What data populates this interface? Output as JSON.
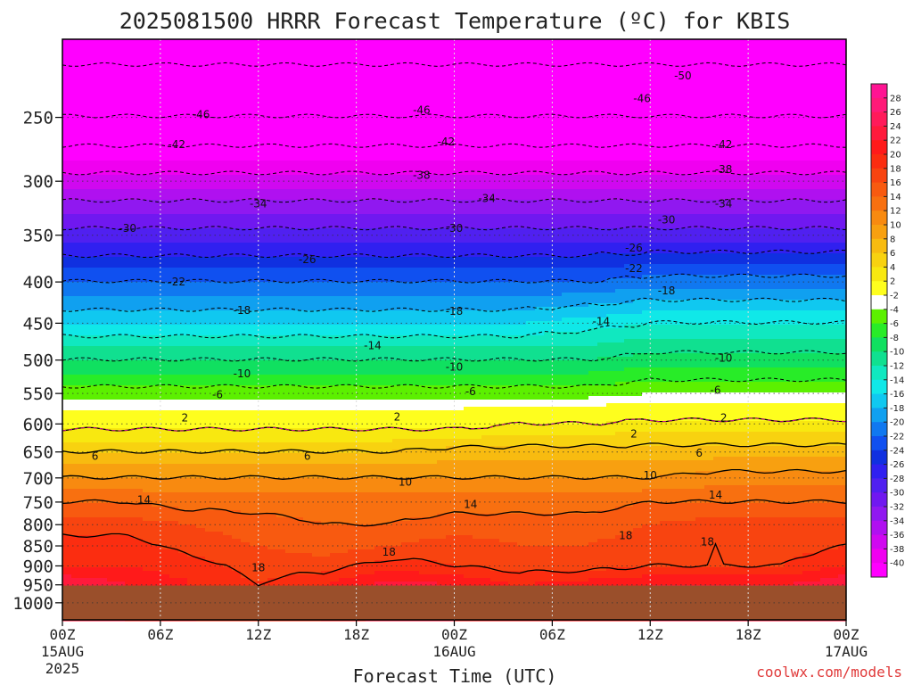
{
  "title": "2025081500 HRRR Forecast Temperature (ºC) for KBIS",
  "credit": "coolwx.com/models",
  "colors": {
    "ground": "#9a4f2b",
    "frame": "#000000",
    "grid": "#bdbdbd",
    "freezing_line": "#d0108a"
  },
  "chart_data": {
    "type": "heatmap",
    "title": "2025081500 HRRR Forecast Temperature (ºC) for KBIS",
    "xlabel": "Forecast Time (UTC)",
    "ylabel": "",
    "x_ticks": [
      {
        "h": 0,
        "l1": "00Z",
        "l2": "15AUG",
        "l3": "2025"
      },
      {
        "h": 6,
        "l1": "06Z"
      },
      {
        "h": 12,
        "l1": "12Z"
      },
      {
        "h": 18,
        "l1": "18Z"
      },
      {
        "h": 24,
        "l1": "00Z",
        "l2": "16AUG"
      },
      {
        "h": 30,
        "l1": "06Z"
      },
      {
        "h": 36,
        "l1": "12Z"
      },
      {
        "h": 42,
        "l1": "18Z"
      },
      {
        "h": 48,
        "l1": "00Z",
        "l2": "17AUG"
      }
    ],
    "xlim": [
      0,
      48
    ],
    "y_ticks": [
      250,
      300,
      350,
      400,
      450,
      500,
      550,
      600,
      650,
      700,
      750,
      800,
      850,
      900,
      950,
      1000
    ],
    "ylim_hpa": [
      1050,
      200
    ],
    "y_scale": "log",
    "surface_hpa": 952,
    "colorbar": {
      "ticks": [
        28,
        26,
        24,
        22,
        20,
        18,
        16,
        14,
        12,
        10,
        8,
        6,
        4,
        2,
        -2,
        -4,
        -6,
        -8,
        -10,
        -12,
        -14,
        -16,
        -18,
        -20,
        -22,
        -24,
        -26,
        -28,
        -30,
        -32,
        -34,
        -36,
        -38,
        -40
      ],
      "colors": [
        "#ff1493",
        "#ff1a78",
        "#ff1a5a",
        "#ff1a3c",
        "#ff1a1a",
        "#fb2d10",
        "#f84410",
        "#f85a10",
        "#f87010",
        "#f88a10",
        "#f8a010",
        "#f8bb10",
        "#f8d210",
        "#f8e810",
        "#fefe1e",
        "#ffffff",
        "#5cf000",
        "#28ec28",
        "#10e060",
        "#10e090",
        "#10e8c0",
        "#10e8e8",
        "#10c8f0",
        "#10a0f0",
        "#1078f0",
        "#1050f0",
        "#1030e0",
        "#3020f0",
        "#5020f0",
        "#7018f0",
        "#9018f0",
        "#b010f0",
        "#d008f0",
        "#f000f0",
        "#ff00ff"
      ]
    },
    "series": [
      {
        "pressure_hpa": 950,
        "temps": [
          24,
          22,
          20,
          18,
          20,
          23,
          22,
          20,
          21,
          22,
          22,
          22,
          24
        ]
      },
      {
        "pressure_hpa": 900,
        "temps": [
          20,
          20,
          19,
          17,
          17,
          19,
          18,
          17,
          17,
          18,
          18,
          18,
          20
        ]
      },
      {
        "pressure_hpa": 850,
        "temps": [
          19,
          19,
          17,
          16,
          15,
          16,
          17,
          16,
          16,
          17,
          18,
          17,
          18
        ]
      },
      {
        "pressure_hpa": 800,
        "temps": [
          17,
          17,
          16,
          15,
          14,
          14,
          15,
          15,
          15,
          16,
          17,
          17,
          17
        ]
      },
      {
        "pressure_hpa": 750,
        "temps": [
          14,
          14,
          13,
          13,
          13,
          13,
          13,
          13,
          13,
          14,
          14,
          14,
          14
        ]
      },
      {
        "pressure_hpa": 700,
        "temps": [
          10,
          10,
          10,
          10,
          10,
          10,
          10,
          10,
          10,
          10,
          11,
          11,
          11
        ]
      },
      {
        "pressure_hpa": 650,
        "temps": [
          6,
          6,
          6,
          6,
          6,
          6,
          7,
          7,
          7,
          7,
          7,
          7,
          7
        ]
      },
      {
        "pressure_hpa": 600,
        "temps": [
          1,
          1,
          1,
          1,
          1,
          1,
          1,
          2,
          2,
          3,
          3,
          3,
          3
        ]
      },
      {
        "pressure_hpa": 550,
        "temps": [
          -5,
          -5,
          -5,
          -5,
          -5,
          -5,
          -5,
          -5,
          -5,
          -4,
          -4,
          -4,
          -4
        ]
      },
      {
        "pressure_hpa": 500,
        "temps": [
          -10,
          -10,
          -10,
          -10,
          -10,
          -10,
          -10,
          -10,
          -10,
          -9,
          -9,
          -9,
          -9
        ]
      },
      {
        "pressure_hpa": 450,
        "temps": [
          -16,
          -16,
          -16,
          -16,
          -16,
          -16,
          -16,
          -16,
          -15,
          -14,
          -14,
          -14,
          -14
        ]
      },
      {
        "pressure_hpa": 400,
        "temps": [
          -22,
          -22,
          -22,
          -22,
          -22,
          -22,
          -22,
          -22,
          -22,
          -21,
          -21,
          -21,
          -21
        ]
      },
      {
        "pressure_hpa": 350,
        "temps": [
          -29,
          -29,
          -29,
          -29,
          -29,
          -29,
          -29,
          -29,
          -29,
          -29,
          -29,
          -29,
          -29
        ]
      },
      {
        "pressure_hpa": 300,
        "temps": [
          -37,
          -37,
          -37,
          -37,
          -37,
          -37,
          -37,
          -37,
          -37,
          -37,
          -37,
          -37,
          -37
        ]
      },
      {
        "pressure_hpa": 250,
        "temps": [
          -46,
          -46,
          -46,
          -46,
          -46,
          -46,
          -46,
          -46,
          -46,
          -46,
          -46,
          -46,
          -46
        ]
      },
      {
        "pressure_hpa": 200,
        "temps": [
          -52,
          -52,
          -52,
          -52,
          -52,
          -52,
          -52,
          -52,
          -52,
          -52,
          -52,
          -52,
          -52
        ]
      }
    ],
    "series_hours": [
      0,
      4,
      8,
      12,
      16,
      20,
      24,
      28,
      32,
      36,
      40,
      44,
      48
    ],
    "contours": [
      {
        "value": 18,
        "style": "solid",
        "labels": [
          [
            12,
            905
          ],
          [
            20,
            865
          ],
          [
            34.5,
            825
          ],
          [
            39.5,
            840
          ]
        ]
      },
      {
        "value": 14,
        "style": "solid",
        "labels": [
          [
            5,
            745
          ],
          [
            25,
            755
          ],
          [
            40,
            735
          ]
        ]
      },
      {
        "value": 10,
        "style": "solid",
        "labels": [
          [
            21,
            708
          ],
          [
            36,
            695
          ]
        ]
      },
      {
        "value": 6,
        "style": "solid",
        "labels": [
          [
            2,
            658
          ],
          [
            15,
            658
          ],
          [
            39,
            652
          ]
        ]
      },
      {
        "value": 2,
        "style": "solid",
        "labels": [
          [
            35,
            617
          ]
        ]
      },
      {
        "value": 2,
        "style": "dashed",
        "labels": [
          [
            7.5,
            590
          ],
          [
            20.5,
            588
          ],
          [
            40.5,
            590
          ]
        ]
      },
      {
        "value": -6,
        "style": "dashed",
        "labels": [
          [
            9.5,
            552
          ],
          [
            25,
            547
          ],
          [
            40,
            545
          ]
        ]
      },
      {
        "value": -10,
        "style": "dashed",
        "labels": [
          [
            11,
            520
          ],
          [
            24,
            510
          ],
          [
            40.5,
            497
          ]
        ]
      },
      {
        "value": -14,
        "style": "dashed",
        "labels": [
          [
            19,
            480
          ],
          [
            33,
            448
          ]
        ]
      },
      {
        "value": -18,
        "style": "dashed",
        "labels": [
          [
            11,
            434
          ],
          [
            24,
            435
          ],
          [
            37,
            410
          ]
        ]
      },
      {
        "value": -22,
        "style": "dashed",
        "labels": [
          [
            7,
            400
          ],
          [
            35,
            385
          ]
        ]
      },
      {
        "value": -26,
        "style": "dashed",
        "labels": [
          [
            15,
            375
          ],
          [
            35,
            363
          ]
        ]
      },
      {
        "value": -30,
        "style": "dashed",
        "labels": [
          [
            4,
            343
          ],
          [
            24,
            343
          ],
          [
            37,
            335
          ]
        ]
      },
      {
        "value": -34,
        "style": "dashed",
        "labels": [
          [
            12,
            320
          ],
          [
            26,
            315
          ],
          [
            40.5,
            320
          ]
        ]
      },
      {
        "value": -38,
        "style": "dashed",
        "labels": [
          [
            22,
            295
          ],
          [
            40.5,
            290
          ]
        ]
      },
      {
        "value": -42,
        "style": "dashed",
        "labels": [
          [
            7,
            270
          ],
          [
            23.5,
            268
          ],
          [
            40.5,
            270
          ]
        ]
      },
      {
        "value": -46,
        "style": "dashed",
        "labels": [
          [
            8.5,
            248
          ],
          [
            22,
            245
          ],
          [
            35.5,
            237
          ]
        ]
      },
      {
        "value": -50,
        "style": "dashed",
        "labels": [
          [
            38,
            222
          ]
        ]
      }
    ]
  }
}
